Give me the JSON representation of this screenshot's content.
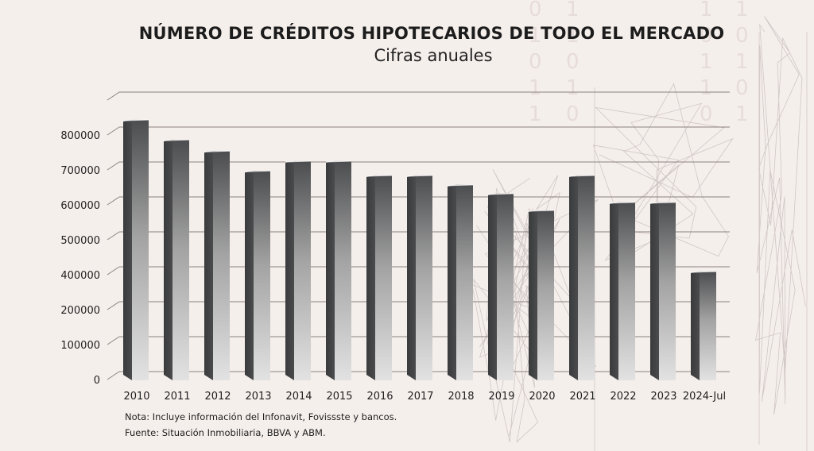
{
  "chart_data": {
    "type": "bar",
    "style": "3d-column",
    "title": "NÚMERO DE CRÉDITOS HIPOTECARIOS DE TODO EL MERCADO",
    "subtitle": "Cifras anuales",
    "xlabel": "",
    "ylabel": "",
    "categories": [
      "2010",
      "2011",
      "2012",
      "2013",
      "2014",
      "2015",
      "2016",
      "2017",
      "2018",
      "2019",
      "2020",
      "2021",
      "2022",
      "2023",
      "2024-Jul"
    ],
    "values": [
      841000,
      784000,
      752000,
      695000,
      723000,
      723000,
      682000,
      682000,
      655000,
      630000,
      582000,
      682000,
      605000,
      605000,
      407000
    ],
    "ytick_labels": [
      "0",
      "100000",
      "200000",
      "400000",
      "500000",
      "600000",
      "700000",
      "800000"
    ],
    "gridlines": 9,
    "ylim": [
      0,
      900000
    ],
    "grid": true,
    "legend": "none"
  },
  "notes": {
    "nota": "Nota: Incluye información del Infonavit, Fovissste y bancos.",
    "fuente": "Fuente: Situación Inmobiliaria, BBVA y ABM."
  },
  "colors": {
    "background": "#f5efec",
    "bar_side": "#3e3f41",
    "bar_front_top": "#4c4d4f",
    "bar_front_bottom": "#e2e2e2",
    "gridline": "#8a817e"
  },
  "decoration": {
    "binary_digits": [
      "0",
      "1",
      "0",
      "1",
      "1",
      "0",
      "1",
      "0",
      "1",
      "1"
    ]
  }
}
